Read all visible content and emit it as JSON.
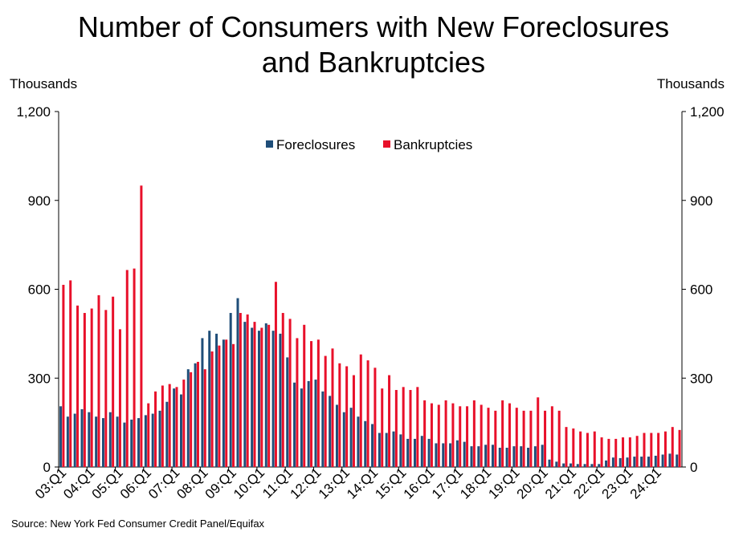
{
  "chart_data": {
    "type": "bar",
    "title_line1": "Number of Consumers with New Foreclosures",
    "title_line2": "and Bankruptcies",
    "left_axis_unit": "Thousands",
    "right_axis_unit": "Thousands",
    "source": "Source: New York Fed Consumer Credit Panel/Equifax",
    "ylim": [
      0,
      1200
    ],
    "y_ticks": [
      0,
      300,
      600,
      900,
      1200
    ],
    "y_tick_labels": [
      "0",
      "300",
      "600",
      "900",
      "1,200"
    ],
    "legend_position": "top-center",
    "year_labels": [
      "03:Q1",
      "04:Q1",
      "05:Q1",
      "06:Q1",
      "07:Q1",
      "08:Q1",
      "09:Q1",
      "10:Q1",
      "11:Q1",
      "12:Q1",
      "13:Q1",
      "14:Q1",
      "15:Q1",
      "16:Q1",
      "17:Q1",
      "18:Q1",
      "19:Q1",
      "20:Q1",
      "21:Q1",
      "22:Q1",
      "23:Q1",
      "24:Q1"
    ],
    "series": [
      {
        "name": "Foreclosures",
        "color": "#1f4e79",
        "values": [
          205,
          170,
          180,
          195,
          185,
          170,
          165,
          185,
          170,
          150,
          160,
          165,
          175,
          180,
          190,
          220,
          265,
          245,
          330,
          350,
          435,
          460,
          450,
          430,
          520,
          570,
          490,
          470,
          460,
          485,
          460,
          450,
          370,
          285,
          265,
          290,
          295,
          255,
          240,
          210,
          185,
          200,
          170,
          155,
          145,
          115,
          115,
          120,
          110,
          95,
          95,
          105,
          95,
          80,
          80,
          80,
          90,
          85,
          70,
          70,
          75,
          75,
          65,
          65,
          70,
          70,
          65,
          70,
          75,
          25,
          18,
          12,
          12,
          10,
          10,
          10,
          10,
          22,
          32,
          30,
          32,
          35,
          35,
          35,
          38,
          42,
          45,
          42
        ]
      },
      {
        "name": "Bankruptcies",
        "color": "#e8102a",
        "values": [
          615,
          630,
          545,
          520,
          535,
          580,
          530,
          575,
          465,
          665,
          670,
          950,
          215,
          255,
          275,
          280,
          270,
          295,
          320,
          355,
          330,
          390,
          410,
          430,
          415,
          520,
          515,
          490,
          470,
          480,
          625,
          520,
          500,
          435,
          480,
          425,
          430,
          375,
          400,
          350,
          340,
          310,
          380,
          360,
          335,
          265,
          310,
          260,
          270,
          260,
          270,
          225,
          215,
          210,
          225,
          215,
          205,
          205,
          225,
          210,
          200,
          190,
          225,
          215,
          200,
          190,
          190,
          235,
          190,
          205,
          190,
          135,
          130,
          120,
          115,
          120,
          100,
          95,
          95,
          100,
          100,
          105,
          115,
          115,
          115,
          120,
          135,
          125
        ]
      }
    ]
  }
}
